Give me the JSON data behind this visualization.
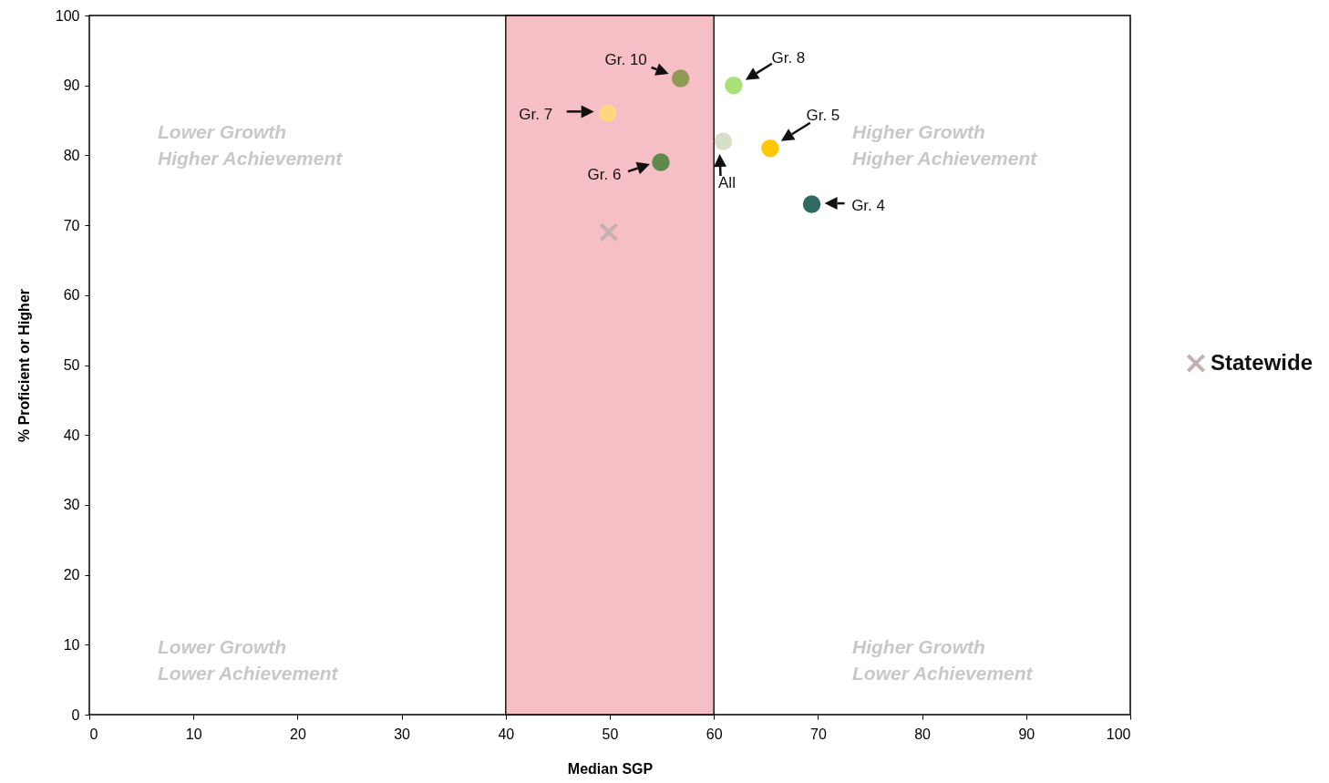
{
  "chart_data": {
    "type": "scatter",
    "xlabel": "Median SGP",
    "ylabel": "% Proficient or Higher",
    "xlim": [
      0,
      100
    ],
    "ylim": [
      0,
      100
    ],
    "xticks": [
      0,
      10,
      20,
      30,
      40,
      50,
      60,
      70,
      80,
      90,
      100
    ],
    "yticks": [
      0,
      10,
      20,
      30,
      40,
      50,
      60,
      70,
      80,
      90,
      100
    ],
    "grid": false,
    "legend": "right",
    "series": [
      {
        "name": "Gr. 10",
        "color": "#8f9a55",
        "marker": "circle",
        "x": [
          56.8
        ],
        "values": [
          91
        ]
      },
      {
        "name": "Gr. 8",
        "color": "#a8e07a",
        "marker": "circle",
        "x": [
          61.9
        ],
        "values": [
          90
        ]
      },
      {
        "name": "Gr. 7",
        "color": "#ffd580",
        "marker": "circle",
        "x": [
          49.8
        ],
        "values": [
          86
        ]
      },
      {
        "name": "All",
        "color": "#d6e0c8",
        "marker": "circle",
        "x": [
          60.9
        ],
        "values": [
          82
        ]
      },
      {
        "name": "Gr. 5",
        "color": "#ffc800",
        "marker": "circle",
        "x": [
          65.4
        ],
        "values": [
          81
        ]
      },
      {
        "name": "Gr. 6",
        "color": "#5e8a4a",
        "marker": "circle",
        "x": [
          54.9
        ],
        "values": [
          79
        ]
      },
      {
        "name": "Gr. 4",
        "color": "#2f6a62",
        "marker": "circle",
        "x": [
          69.4
        ],
        "values": [
          73
        ]
      },
      {
        "name": "Statewide",
        "color": "#c4b0b0",
        "marker": "cross",
        "x": [
          49.9
        ],
        "values": [
          69
        ]
      }
    ],
    "bands": [
      {
        "axis": "x",
        "from": 40,
        "to": 60,
        "color": "#f6b8bf"
      }
    ],
    "annotations": [
      "Lower Growth\nHigher Achievement",
      "Higher Growth\nHigher Achievement",
      "Lower Growth\nLower Achievement",
      "Higher Growth\nLower Achievement"
    ]
  }
}
